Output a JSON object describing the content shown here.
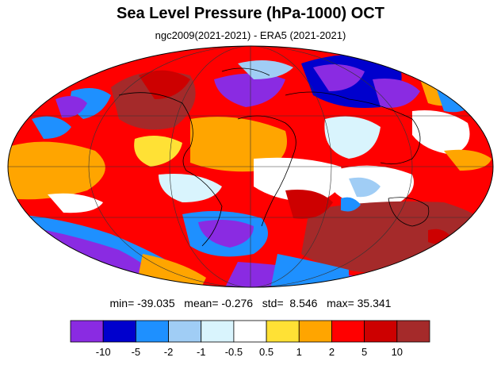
{
  "title": "Sea Level Pressure (hPa-1000) OCT",
  "subtitle": "ngc2009(2021-2021) - ERA5 (2021-2021)",
  "stats": {
    "min_label": "min=",
    "min": "-39.035",
    "mean_label": "mean=",
    "mean": "-0.276",
    "std_label": "std=",
    "std": "8.546",
    "max_label": "max=",
    "max": "35.341"
  },
  "colorbar": {
    "colors": [
      "#8a2be2",
      "#0000cd",
      "#1e90ff",
      "#a0cdf5",
      "#d9f4fd",
      "#ffffff",
      "#ffe135",
      "#ffa500",
      "#ff0000",
      "#cd0000",
      "#a52a2a"
    ],
    "ticks": [
      "-10",
      "-5",
      "-2",
      "-1",
      "-0.5",
      "0.5",
      "1",
      "2",
      "5",
      "10"
    ]
  },
  "map": {
    "projection": "mollweide",
    "coastline_color": "#000000",
    "grid": true
  }
}
